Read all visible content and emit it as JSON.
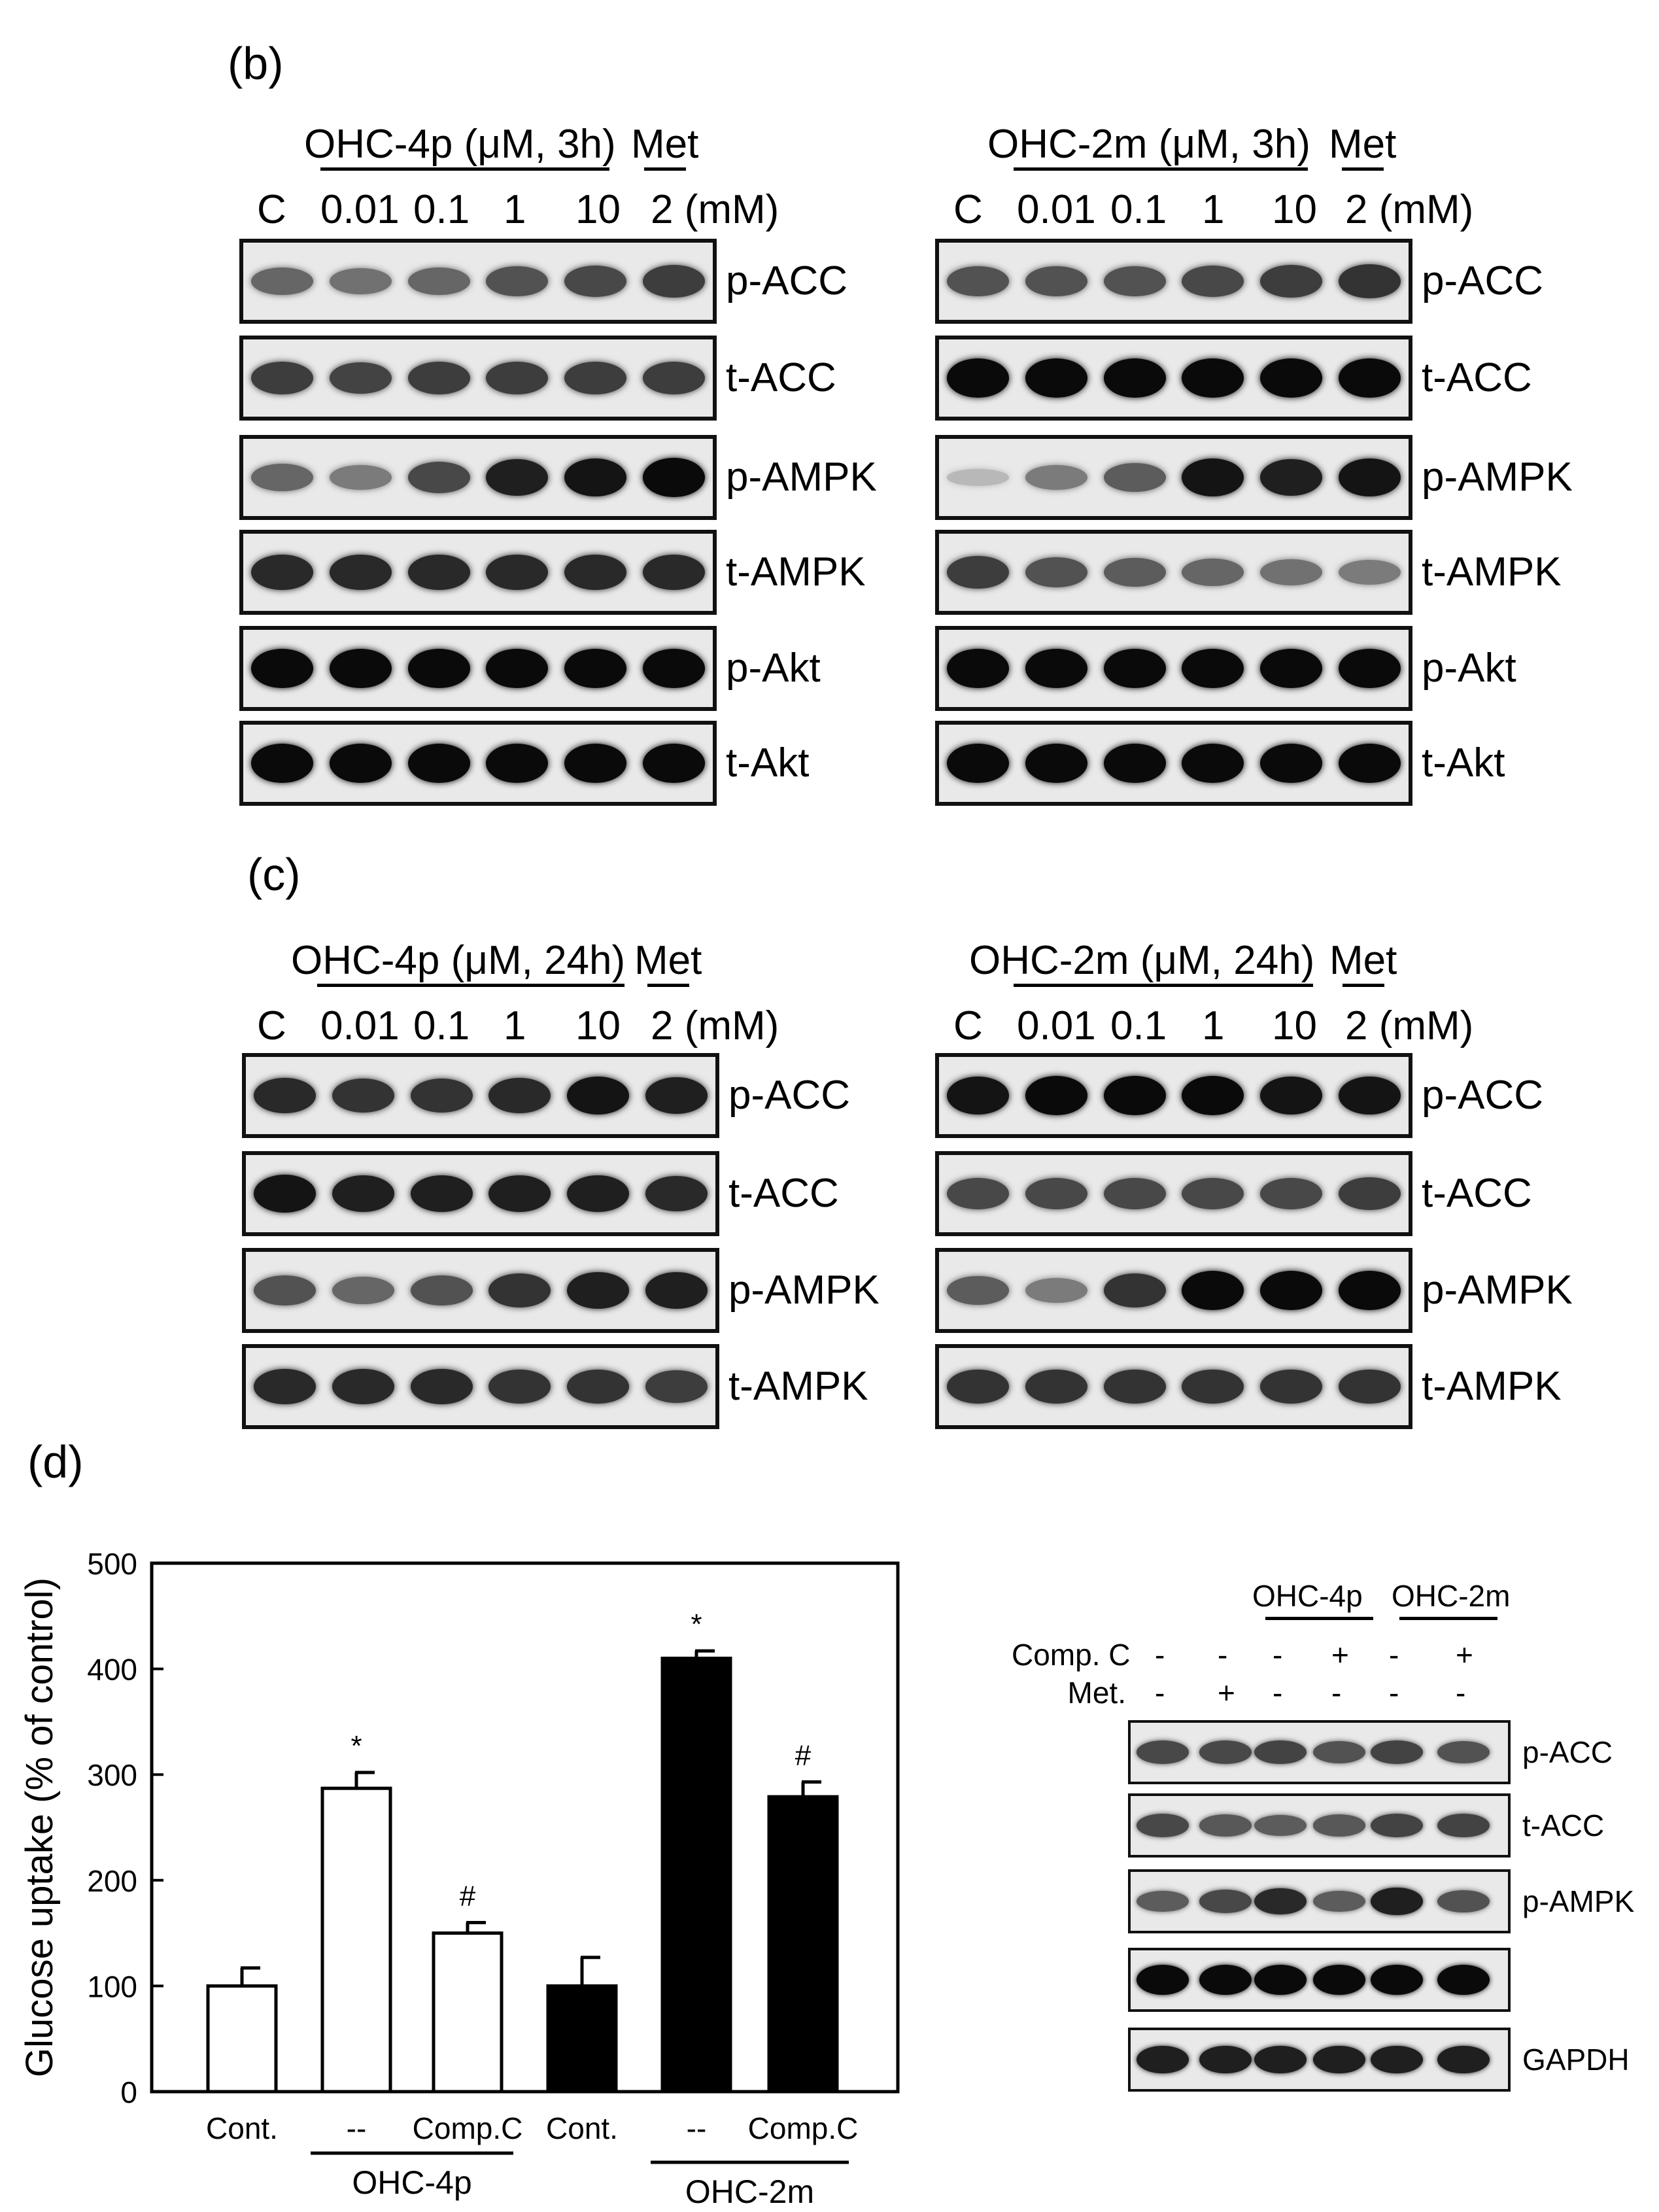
{
  "panel_b": {
    "letter": "(b)",
    "left": {
      "treatment": "OHC-4p (μM, 3h)",
      "met": "Met",
      "lanes": [
        "C",
        "0.01",
        "0.1",
        "1",
        "10",
        "2 (mM)"
      ],
      "blots": [
        {
          "label": "p-ACC",
          "intensity": [
            0.55,
            0.5,
            0.55,
            0.65,
            0.7,
            0.75
          ]
        },
        {
          "label": "t-ACC",
          "intensity": [
            0.75,
            0.72,
            0.75,
            0.75,
            0.75,
            0.75
          ]
        },
        {
          "label": "p-AMPK",
          "intensity": [
            0.55,
            0.45,
            0.7,
            0.9,
            0.95,
            1.0
          ]
        },
        {
          "label": "t-AMPK",
          "intensity": [
            0.85,
            0.85,
            0.85,
            0.85,
            0.85,
            0.85
          ]
        },
        {
          "label": "p-Akt",
          "intensity": [
            1.0,
            1.0,
            1.0,
            1.0,
            1.0,
            1.0
          ]
        },
        {
          "label": "t-Akt",
          "intensity": [
            1.0,
            1.0,
            1.0,
            1.0,
            1.0,
            1.0
          ]
        }
      ]
    },
    "right": {
      "treatment": "OHC-2m (μM, 3h)",
      "met": "Met",
      "lanes": [
        "C",
        "0.01",
        "0.1",
        "1",
        "10",
        "2 (mM)"
      ],
      "blots": [
        {
          "label": "p-ACC",
          "intensity": [
            0.65,
            0.65,
            0.65,
            0.7,
            0.75,
            0.8
          ]
        },
        {
          "label": "t-ACC",
          "intensity": [
            1.0,
            1.0,
            1.0,
            1.0,
            1.0,
            1.0
          ]
        },
        {
          "label": "p-AMPK",
          "intensity": [
            0.15,
            0.45,
            0.6,
            0.95,
            0.9,
            0.95
          ]
        },
        {
          "label": "t-AMPK",
          "intensity": [
            0.75,
            0.65,
            0.6,
            0.55,
            0.5,
            0.45
          ]
        },
        {
          "label": "p-Akt",
          "intensity": [
            1.0,
            1.0,
            1.0,
            1.0,
            1.0,
            1.0
          ]
        },
        {
          "label": "t-Akt",
          "intensity": [
            1.0,
            1.0,
            1.0,
            1.0,
            1.0,
            1.0
          ]
        }
      ]
    }
  },
  "panel_c": {
    "letter": "(c)",
    "left": {
      "treatment": "OHC-4p (μM, 24h)",
      "met": "Met",
      "lanes": [
        "C",
        "0.01",
        "0.1",
        "1",
        "10",
        "2 (mM)"
      ],
      "blots": [
        {
          "label": "p-ACC",
          "intensity": [
            0.85,
            0.8,
            0.8,
            0.85,
            0.95,
            0.9
          ]
        },
        {
          "label": "t-ACC",
          "intensity": [
            0.95,
            0.9,
            0.9,
            0.9,
            0.9,
            0.85
          ]
        },
        {
          "label": "p-AMPK",
          "intensity": [
            0.65,
            0.55,
            0.65,
            0.8,
            0.9,
            0.9
          ]
        },
        {
          "label": "t-AMPK",
          "intensity": [
            0.85,
            0.85,
            0.85,
            0.8,
            0.8,
            0.75
          ]
        }
      ]
    },
    "right": {
      "treatment": "OHC-2m (μM, 24h)",
      "met": "Met",
      "lanes": [
        "C",
        "0.01",
        "0.1",
        "1",
        "10",
        "2 (mM)"
      ],
      "blots": [
        {
          "label": "p-ACC",
          "intensity": [
            0.95,
            1.0,
            1.0,
            1.0,
            0.95,
            0.95
          ]
        },
        {
          "label": "t-ACC",
          "intensity": [
            0.7,
            0.7,
            0.7,
            0.7,
            0.7,
            0.75
          ]
        },
        {
          "label": "p-AMPK",
          "intensity": [
            0.6,
            0.45,
            0.8,
            1.0,
            1.0,
            1.0
          ]
        },
        {
          "label": "t-AMPK",
          "intensity": [
            0.8,
            0.8,
            0.8,
            0.8,
            0.8,
            0.8
          ]
        }
      ]
    }
  },
  "panel_d": {
    "letter": "(d)",
    "blot": {
      "group_labels": [
        "OHC-4p",
        "OHC-2m"
      ],
      "rows": [
        {
          "label": "Comp. C",
          "signs": [
            "-",
            "-",
            "-",
            "+",
            "-",
            "+"
          ]
        },
        {
          "label": "Met.",
          "signs": [
            "-",
            "+",
            "-",
            "-",
            "-",
            "-"
          ]
        }
      ],
      "blots": [
        {
          "label": "p-ACC",
          "intensity": [
            0.7,
            0.7,
            0.72,
            0.65,
            0.72,
            0.65
          ]
        },
        {
          "label": "t-ACC",
          "intensity": [
            0.7,
            0.62,
            0.6,
            0.62,
            0.72,
            0.72
          ]
        },
        {
          "label": "p-AMPK",
          "intensity": [
            0.6,
            0.7,
            0.85,
            0.6,
            0.9,
            0.65
          ]
        },
        {
          "label": "",
          "intensity": [
            1.0,
            1.0,
            1.0,
            1.0,
            1.0,
            1.0
          ]
        },
        {
          "label": "GAPDH",
          "intensity": [
            0.9,
            0.9,
            0.9,
            0.9,
            0.9,
            0.9
          ]
        }
      ]
    }
  },
  "chart_data": {
    "type": "bar",
    "ylabel": "Glucose uptake (% of control)",
    "ylim": [
      0,
      500
    ],
    "yticks": [
      0,
      100,
      200,
      300,
      400,
      500
    ],
    "categories": [
      "Cont.",
      "--",
      "Comp.C",
      "Cont.",
      "--",
      "Comp.C"
    ],
    "values": [
      100,
      287,
      150,
      100,
      410,
      279
    ],
    "errors": [
      17,
      15,
      10,
      27,
      7,
      14
    ],
    "fill": [
      "#ffffff",
      "#ffffff",
      "#ffffff",
      "#000000",
      "#000000",
      "#000000"
    ],
    "annotations": [
      "",
      "*",
      "#",
      "",
      "*",
      "#"
    ],
    "groups": [
      {
        "label": "OHC-4p",
        "from": 1,
        "to": 2
      },
      {
        "label": "OHC-2m",
        "from": 4,
        "to": 5
      }
    ]
  }
}
